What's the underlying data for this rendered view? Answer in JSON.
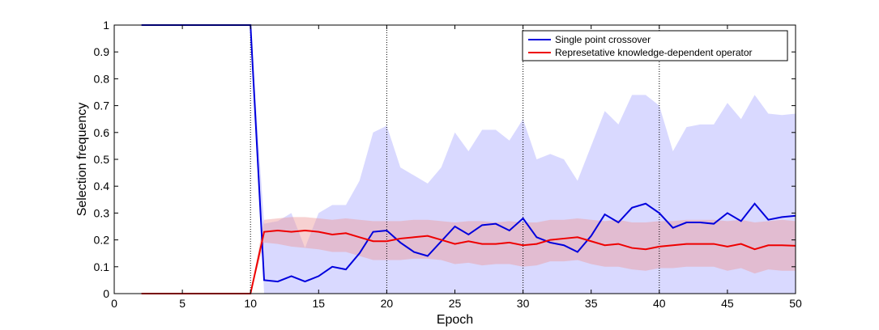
{
  "chart_data": {
    "type": "line",
    "title": "",
    "xlabel": "Epoch",
    "ylabel": "Selection frequency",
    "xlim": [
      0,
      50
    ],
    "ylim": [
      0,
      1
    ],
    "xticks": [
      0,
      5,
      10,
      15,
      20,
      25,
      30,
      35,
      40,
      45,
      50
    ],
    "yticks": [
      0,
      0.1,
      0.2,
      0.3,
      0.4,
      0.5,
      0.6,
      0.7,
      0.8,
      0.9,
      1
    ],
    "vlines": [
      10,
      20,
      30,
      40
    ],
    "legend_position": "top-right",
    "x": [
      2,
      3,
      4,
      5,
      6,
      7,
      8,
      9,
      10,
      11,
      12,
      13,
      14,
      15,
      16,
      17,
      18,
      19,
      20,
      21,
      22,
      23,
      24,
      25,
      26,
      27,
      28,
      29,
      30,
      31,
      32,
      33,
      34,
      35,
      36,
      37,
      38,
      39,
      40,
      41,
      42,
      43,
      44,
      45,
      46,
      47,
      48,
      49,
      50
    ],
    "series": [
      {
        "name": "Single point crossover",
        "color": "#0000dd",
        "band_color": "#ccccff",
        "values": [
          1,
          1,
          1,
          1,
          1,
          1,
          1,
          1,
          1,
          0.05,
          0.045,
          0.065,
          0.045,
          0.065,
          0.1,
          0.09,
          0.15,
          0.23,
          0.235,
          0.19,
          0.155,
          0.14,
          0.195,
          0.25,
          0.22,
          0.255,
          0.26,
          0.235,
          0.28,
          0.21,
          0.19,
          0.18,
          0.155,
          0.215,
          0.295,
          0.265,
          0.32,
          0.335,
          0.3,
          0.245,
          0.265,
          0.265,
          0.26,
          0.3,
          0.27,
          0.335,
          0.275,
          0.285,
          0.29
        ],
        "upper": [
          1,
          1,
          1,
          1,
          1,
          1,
          1,
          1,
          1,
          0.26,
          0.27,
          0.3,
          0.17,
          0.3,
          0.33,
          0.33,
          0.42,
          0.6,
          0.625,
          0.47,
          0.44,
          0.41,
          0.47,
          0.6,
          0.53,
          0.61,
          0.61,
          0.57,
          0.65,
          0.5,
          0.52,
          0.5,
          0.42,
          0.55,
          0.68,
          0.63,
          0.74,
          0.74,
          0.7,
          0.53,
          0.62,
          0.63,
          0.63,
          0.71,
          0.65,
          0.74,
          0.67,
          0.665,
          0.67
        ],
        "lower": [
          1,
          1,
          1,
          1,
          1,
          1,
          1,
          1,
          1,
          0,
          0,
          0,
          0,
          0,
          0,
          0,
          0,
          0,
          0,
          0,
          0,
          0,
          0,
          0,
          0,
          0,
          0,
          0,
          0,
          0,
          0,
          0,
          0,
          0,
          0,
          0,
          0,
          0,
          0,
          0,
          0,
          0,
          0,
          0,
          0,
          0,
          0,
          0,
          0
        ]
      },
      {
        "name": "Represetative knowledge-dependent operator",
        "color": "#ee0000",
        "band_color": "#ee9999",
        "values": [
          0,
          0,
          0,
          0,
          0,
          0,
          0,
          0,
          0,
          0.23,
          0.235,
          0.23,
          0.235,
          0.23,
          0.22,
          0.225,
          0.21,
          0.195,
          0.195,
          0.205,
          0.21,
          0.215,
          0.2,
          0.185,
          0.195,
          0.185,
          0.185,
          0.19,
          0.18,
          0.185,
          0.2,
          0.205,
          0.21,
          0.195,
          0.18,
          0.185,
          0.17,
          0.165,
          0.175,
          0.18,
          0.185,
          0.185,
          0.185,
          0.175,
          0.185,
          0.165,
          0.18,
          0.18,
          0.178
        ],
        "upper": [
          0,
          0,
          0,
          0,
          0,
          0,
          0,
          0,
          0,
          0.275,
          0.28,
          0.285,
          0.285,
          0.28,
          0.275,
          0.28,
          0.275,
          0.27,
          0.27,
          0.27,
          0.275,
          0.275,
          0.27,
          0.265,
          0.27,
          0.27,
          0.265,
          0.27,
          0.265,
          0.265,
          0.275,
          0.275,
          0.28,
          0.275,
          0.27,
          0.275,
          0.265,
          0.265,
          0.27,
          0.27,
          0.275,
          0.275,
          0.275,
          0.27,
          0.275,
          0.265,
          0.27,
          0.275,
          0.27
        ],
        "lower": [
          0,
          0,
          0,
          0,
          0,
          0,
          0,
          0,
          0,
          0.19,
          0.185,
          0.175,
          0.17,
          0.165,
          0.155,
          0.155,
          0.14,
          0.125,
          0.125,
          0.125,
          0.13,
          0.13,
          0.125,
          0.11,
          0.115,
          0.105,
          0.11,
          0.11,
          0.1,
          0.105,
          0.12,
          0.12,
          0.125,
          0.11,
          0.1,
          0.1,
          0.09,
          0.085,
          0.095,
          0.095,
          0.1,
          0.1,
          0.1,
          0.085,
          0.095,
          0.075,
          0.09,
          0.085,
          0.085
        ]
      }
    ]
  }
}
